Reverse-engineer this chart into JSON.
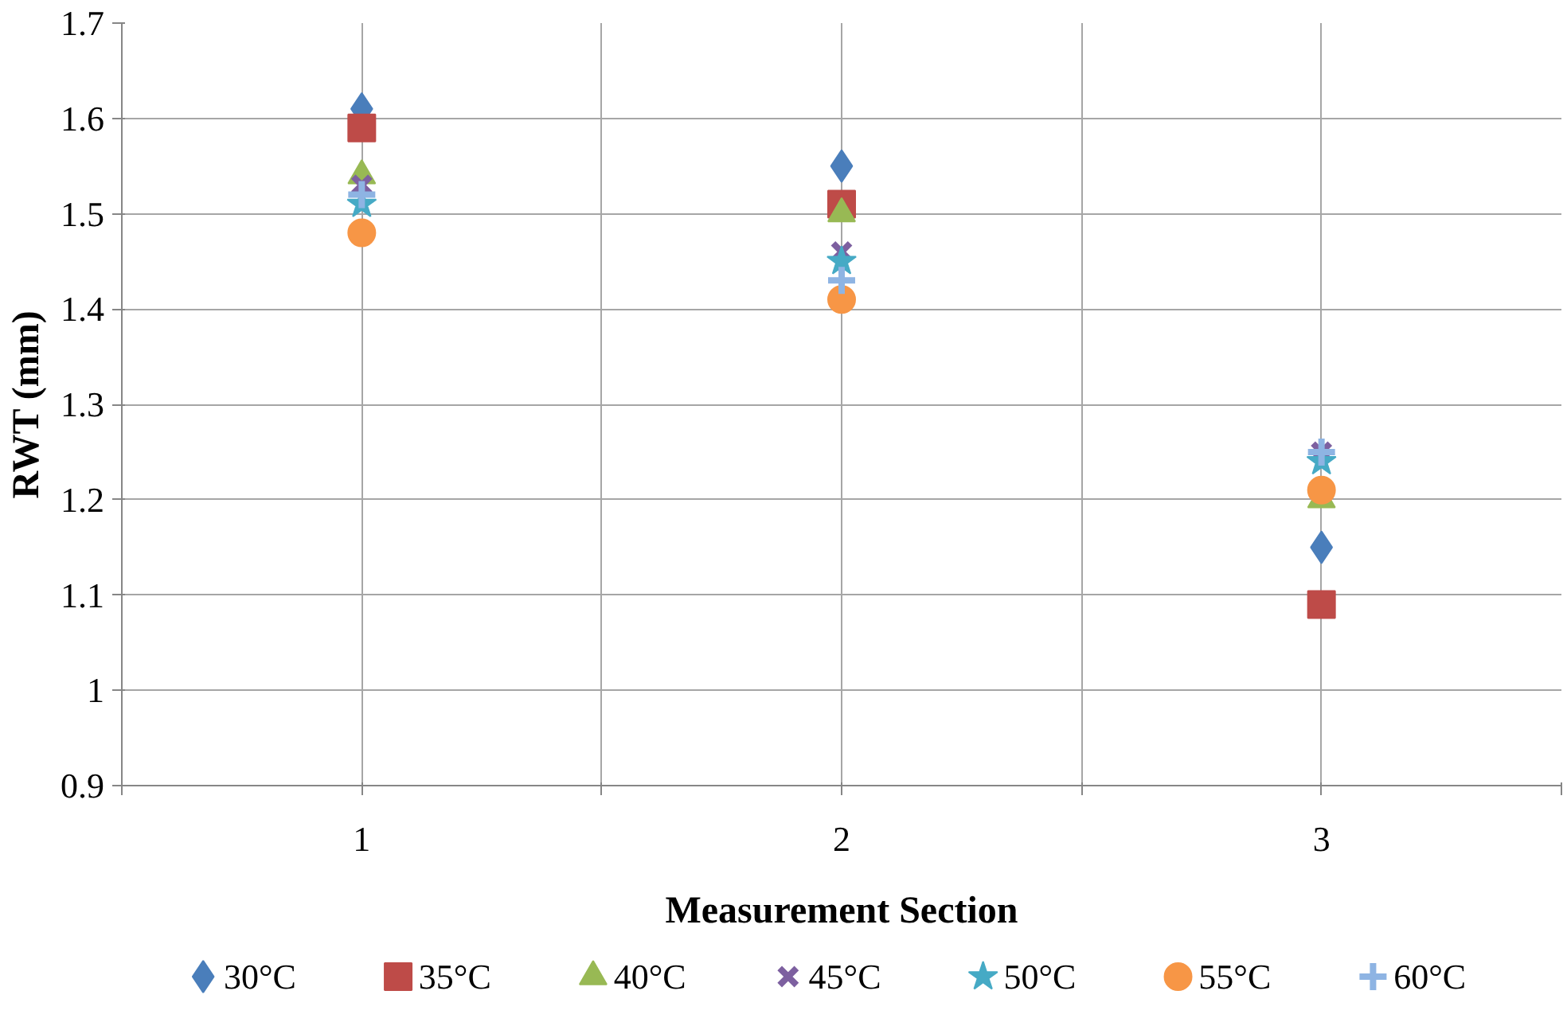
{
  "chart_data": {
    "type": "scatter",
    "xlabel": "Measurement Section",
    "ylabel": "RWT (mm)",
    "x": [
      1,
      2,
      3
    ],
    "series": [
      {
        "name": "30°C",
        "color": "#4a7ebb",
        "marker": "diamond",
        "values": [
          1.61,
          1.55,
          1.15
        ]
      },
      {
        "name": "35°C",
        "color": "#be4b48",
        "marker": "square",
        "values": [
          1.59,
          1.51,
          1.09
        ]
      },
      {
        "name": "40°C",
        "color": "#98b954",
        "marker": "triangle",
        "values": [
          1.54,
          1.5,
          1.2
        ]
      },
      {
        "name": "45°C",
        "color": "#7d60a0",
        "marker": "x",
        "values": [
          1.53,
          1.46,
          1.25
        ]
      },
      {
        "name": "50°C",
        "color": "#46aac5",
        "marker": "star",
        "values": [
          1.51,
          1.45,
          1.24
        ]
      },
      {
        "name": "55°C",
        "color": "#f79646",
        "marker": "circle",
        "values": [
          1.48,
          1.41,
          1.21
        ]
      },
      {
        "name": "60°C",
        "color": "#8eb4e3",
        "marker": "cross",
        "values": [
          1.52,
          1.43,
          1.25
        ]
      }
    ],
    "xlim": [
      0.5,
      3.5
    ],
    "xticks": [
      {
        "value": 0.5,
        "label": null
      },
      1,
      {
        "value": 1.5,
        "label": null
      },
      2,
      {
        "value": 2.5,
        "label": null
      },
      3,
      {
        "value": 3.5,
        "label": null
      }
    ],
    "ylim": [
      0.9,
      1.7
    ],
    "yticks": [
      0.9,
      1,
      1.1,
      1.2,
      1.3,
      1.4,
      1.5,
      1.6,
      1.7
    ],
    "grid": true,
    "legend": "bottom"
  }
}
